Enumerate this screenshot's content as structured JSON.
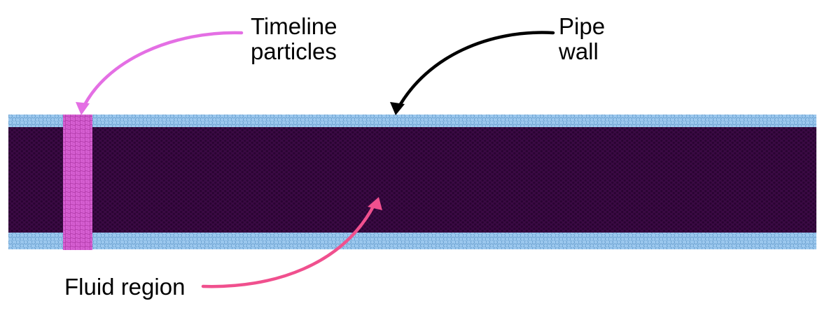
{
  "labels": {
    "timeline_line1": "Timeline",
    "timeline_line2": "particles",
    "wall_line1": "Pipe",
    "wall_line2": "wall",
    "fluid": "Fluid region"
  },
  "colors": {
    "wall_particle_fill": "#9cc8ee",
    "wall_particle_stroke": "#5f97c8",
    "fluid_fill": "#3b0a44",
    "fluid_particle": "#2a0432",
    "timeline_particle_fill": "#d65fd2",
    "timeline_particle_stroke": "#a8329f",
    "arrow_timeline": "#e46fe4",
    "arrow_wall": "#000000",
    "arrow_fluid": "#f0508e"
  }
}
